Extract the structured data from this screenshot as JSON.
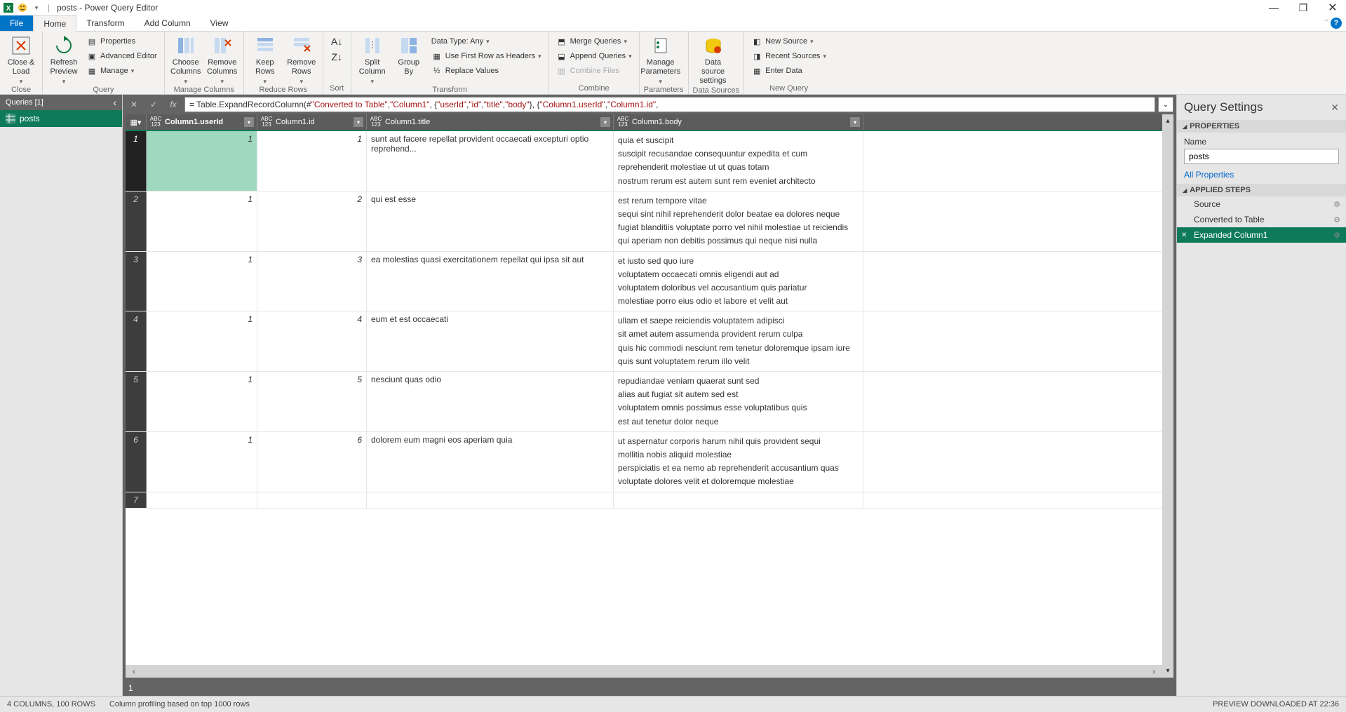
{
  "titlebar": {
    "title": "posts - Power Query Editor"
  },
  "tabs": {
    "file": "File",
    "home": "Home",
    "transform": "Transform",
    "addColumn": "Add Column",
    "view": "View"
  },
  "ribbon": {
    "close": {
      "closeLoad": "Close &\nLoad",
      "group": "Close"
    },
    "query": {
      "refresh": "Refresh\nPreview",
      "properties": "Properties",
      "advEditor": "Advanced Editor",
      "manage": "Manage",
      "group": "Query"
    },
    "manageCols": {
      "choose": "Choose\nColumns",
      "remove": "Remove\nColumns",
      "group": "Manage Columns"
    },
    "reduceRows": {
      "keep": "Keep\nRows",
      "remove": "Remove\nRows",
      "group": "Reduce Rows"
    },
    "sort": {
      "group": "Sort"
    },
    "transform": {
      "split": "Split\nColumn",
      "groupBy": "Group\nBy",
      "dataType": "Data Type: Any",
      "firstRow": "Use First Row as Headers",
      "replace": "Replace Values",
      "group": "Transform"
    },
    "combine": {
      "merge": "Merge Queries",
      "append": "Append Queries",
      "combineFiles": "Combine Files",
      "group": "Combine"
    },
    "parameters": {
      "manage": "Manage\nParameters",
      "group": "Parameters"
    },
    "dataSources": {
      "settings": "Data source\nsettings",
      "group": "Data Sources"
    },
    "newQuery": {
      "newSource": "New Source",
      "recent": "Recent Sources",
      "enterData": "Enter Data",
      "group": "New Query"
    }
  },
  "queriesPane": {
    "header": "Queries [1]",
    "items": [
      "posts"
    ]
  },
  "formula": {
    "prefix": "= Table.ExpandRecordColumn(#",
    "s1": "\"Converted to Table\"",
    "s2": "\"Column1\"",
    "s3": "\"userId\"",
    "s4": "\"id\"",
    "s5": "\"title\"",
    "s6": "\"body\"",
    "s7": "\"Column1.userId\"",
    "s8": "\"Column1.id\""
  },
  "grid": {
    "columns": [
      "Column1.userId",
      "Column1.id",
      "Column1.title",
      "Column1.body"
    ],
    "rows": [
      {
        "n": 1,
        "userId": "1",
        "id": "1",
        "title": "sunt aut facere repellat provident occaecati excepturi optio reprehend...",
        "body": "quia et suscipit\nsuscipit recusandae consequuntur expedita et cum\nreprehenderit molestiae ut ut quas totam\nnostrum rerum est autem sunt rem eveniet architecto"
      },
      {
        "n": 2,
        "userId": "1",
        "id": "2",
        "title": "qui est esse",
        "body": "est rerum tempore vitae\nsequi sint nihil reprehenderit dolor beatae ea dolores neque\nfugiat blanditiis voluptate porro vel nihil molestiae ut reiciendis\nqui aperiam non debitis possimus qui neque nisi nulla"
      },
      {
        "n": 3,
        "userId": "1",
        "id": "3",
        "title": "ea molestias quasi exercitationem repellat qui ipsa sit aut",
        "body": "et iusto sed quo iure\nvoluptatem occaecati omnis eligendi aut ad\nvoluptatem doloribus vel accusantium quis pariatur\nmolestiae porro eius odio et labore et velit aut"
      },
      {
        "n": 4,
        "userId": "1",
        "id": "4",
        "title": "eum et est occaecati",
        "body": "ullam et saepe reiciendis voluptatem adipisci\nsit amet autem assumenda provident rerum culpa\nquis hic commodi nesciunt rem tenetur doloremque ipsam iure\nquis sunt voluptatem rerum illo velit"
      },
      {
        "n": 5,
        "userId": "1",
        "id": "5",
        "title": "nesciunt quas odio",
        "body": "repudiandae veniam quaerat sunt sed\nalias aut fugiat sit autem sed est\nvoluptatem omnis possimus esse voluptatibus quis\nest aut tenetur dolor neque"
      },
      {
        "n": 6,
        "userId": "1",
        "id": "6",
        "title": "dolorem eum magni eos aperiam quia",
        "body": "ut aspernatur corporis harum nihil quis provident sequi\nmollitia nobis aliquid molestiae\nperspiciatis et ea nemo ab reprehenderit accusantium quas\nvoluptate dolores velit et doloremque molestiae"
      },
      {
        "n": 7,
        "userId": "",
        "id": "",
        "title": "",
        "body": ""
      }
    ],
    "previewValue": "1"
  },
  "settings": {
    "title": "Query Settings",
    "propsHeader": "PROPERTIES",
    "nameLabel": "Name",
    "nameValue": "posts",
    "allProps": "All Properties",
    "stepsHeader": "APPLIED STEPS",
    "steps": [
      {
        "label": "Source",
        "gear": true,
        "active": false
      },
      {
        "label": "Converted to Table",
        "gear": true,
        "active": false
      },
      {
        "label": "Expanded Column1",
        "gear": true,
        "active": true
      }
    ]
  },
  "status": {
    "cols": "4 COLUMNS, 100 ROWS",
    "profiling": "Column profiling based on top 1000 rows",
    "preview": "PREVIEW DOWNLOADED AT 22:36"
  },
  "colors": {
    "accent": "#0e7a5a",
    "blue": "#0173c7",
    "selCell": "#9fd8bf"
  }
}
